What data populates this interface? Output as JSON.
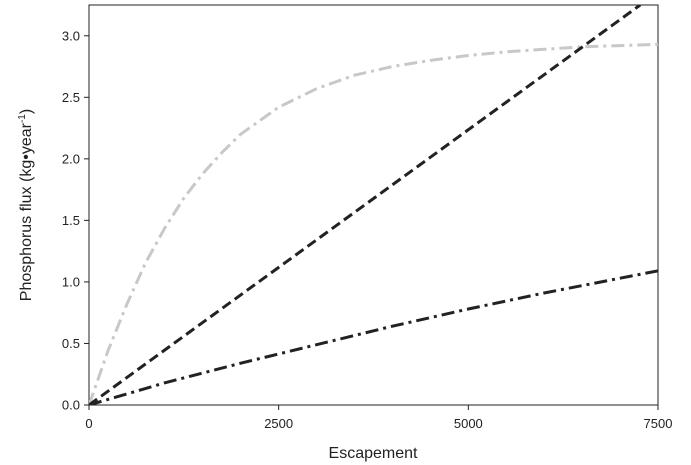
{
  "chart_data": {
    "type": "line",
    "xlabel": "Escapement",
    "ylabel": {
      "pre": "Phosphorus flux (kg",
      "bullet": "•",
      "mid": "year",
      "sup": "-1",
      "post": ")"
    },
    "xlim": [
      0,
      7500
    ],
    "ylim": [
      0,
      3.25
    ],
    "x_ticks": [
      0,
      2500,
      5000,
      7500
    ],
    "x_tick_labels": [
      "0",
      "2500",
      "5000",
      "7500"
    ],
    "y_ticks": [
      0,
      0.5,
      1.0,
      1.5,
      2.0,
      2.5,
      3.0
    ],
    "y_tick_labels": [
      "0.0",
      "0.5",
      "1.0",
      "1.5",
      "2.0",
      "2.5",
      "3.0"
    ],
    "grid": false,
    "legend": "none",
    "series": [
      {
        "color": "#c8c8c8",
        "dash": "dash-dot",
        "x": [
          0,
          250,
          500,
          750,
          1000,
          1250,
          1500,
          1750,
          2000,
          2500,
          3000,
          3500,
          4000,
          4500,
          5000,
          5500,
          6000,
          6500,
          7000,
          7500
        ],
        "y": [
          0,
          0.44,
          0.82,
          1.16,
          1.44,
          1.68,
          1.88,
          2.05,
          2.2,
          2.42,
          2.57,
          2.68,
          2.75,
          2.8,
          2.84,
          2.87,
          2.89,
          2.91,
          2.92,
          2.93
        ]
      },
      {
        "color": "#222222",
        "dash": "dashed",
        "x": [
          0,
          7265
        ],
        "y": [
          0,
          3.25
        ]
      },
      {
        "color": "#222222",
        "dash": "dash-dot",
        "x": [
          0,
          1000,
          2000,
          3000,
          4000,
          5000,
          6000,
          7000,
          7500
        ],
        "y": [
          0,
          0.18,
          0.34,
          0.49,
          0.64,
          0.78,
          0.91,
          1.03,
          1.09
        ]
      }
    ]
  }
}
